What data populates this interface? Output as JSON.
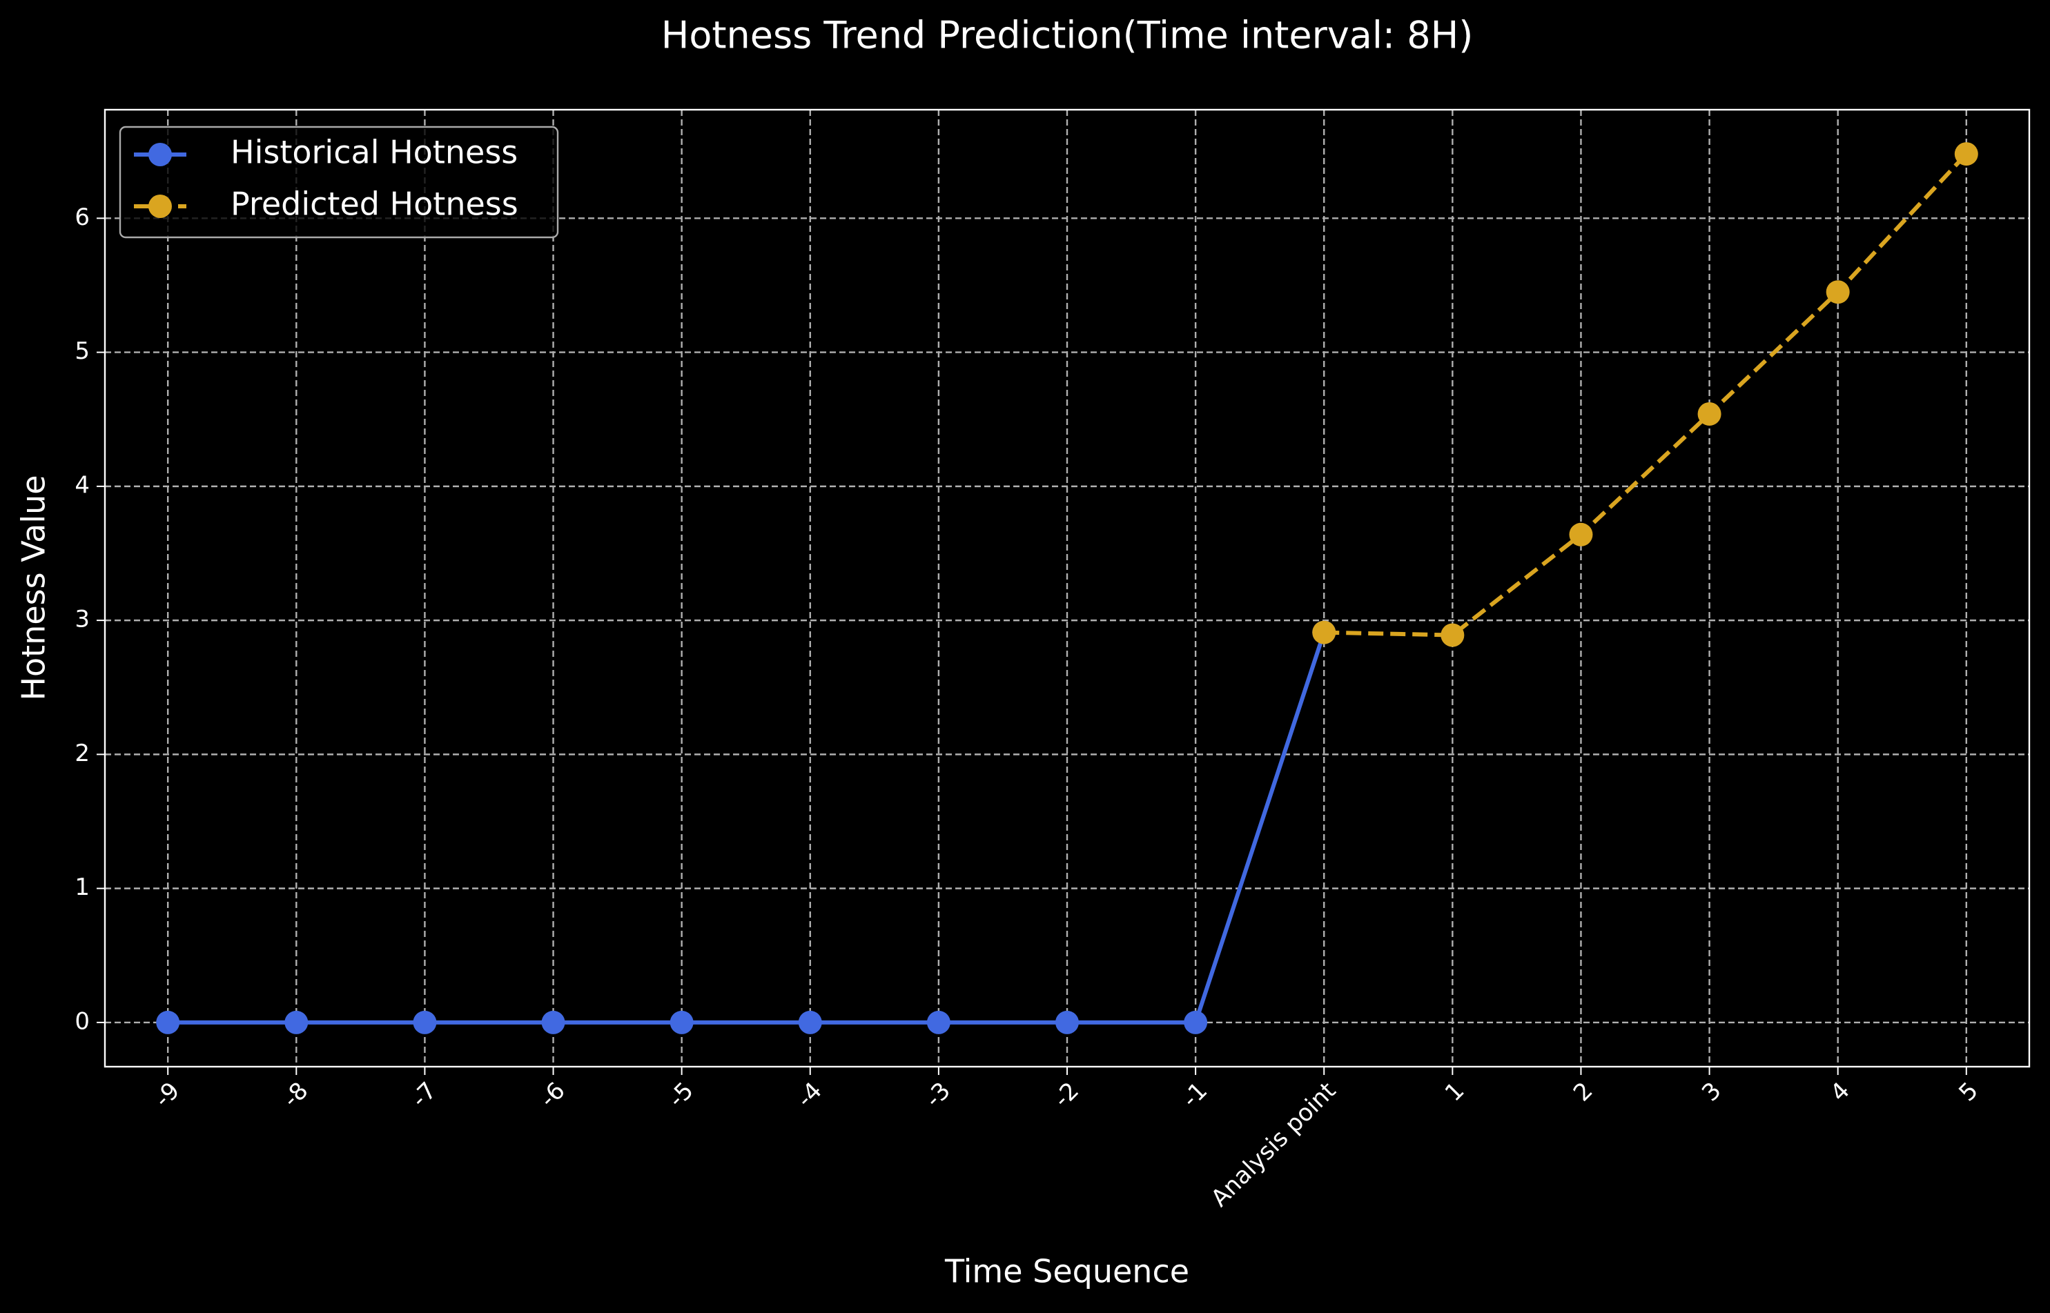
{
  "chart_data": {
    "type": "line",
    "title": "Hotness Trend Prediction(Time interval: 8H)",
    "xlabel": "Time Sequence",
    "ylabel": "Hotness Value",
    "categories": [
      "-9",
      "-8",
      "-7",
      "-6",
      "-5",
      "-4",
      "-3",
      "-2",
      "-1",
      "Analysis point",
      "1",
      "2",
      "3",
      "4",
      "5"
    ],
    "series": [
      {
        "name": "Historical Hotness",
        "color": "#4169e1",
        "dashed": false,
        "values": [
          0,
          0,
          0,
          0,
          0,
          0,
          0,
          0,
          0,
          2.91,
          null,
          null,
          null,
          null,
          null
        ]
      },
      {
        "name": "Predicted Hotness",
        "color": "#daa520",
        "dashed": true,
        "values": [
          null,
          null,
          null,
          null,
          null,
          null,
          null,
          null,
          null,
          2.91,
          2.89,
          3.64,
          4.54,
          5.45,
          6.48
        ]
      }
    ],
    "ylim": [
      -0.33,
      6.81
    ],
    "yticks": [
      0,
      1,
      2,
      3,
      4,
      5,
      6
    ],
    "grid": true,
    "legend": "upper left"
  }
}
